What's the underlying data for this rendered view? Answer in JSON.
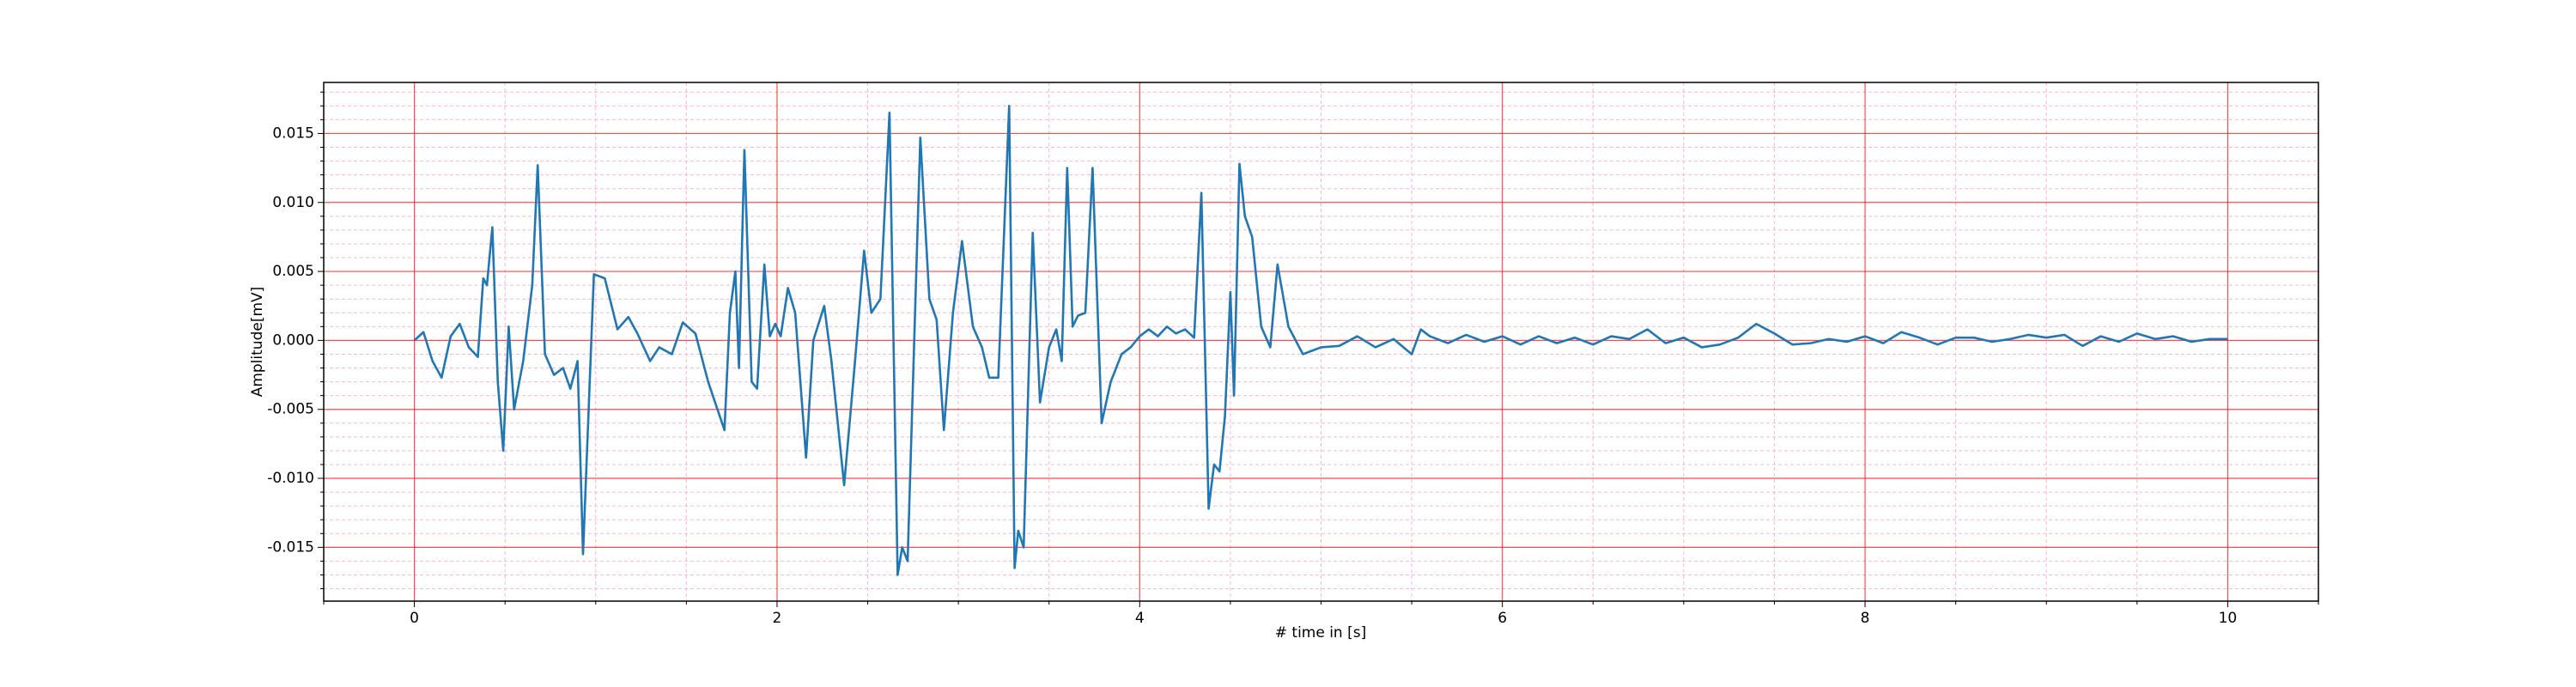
{
  "chart_data": {
    "type": "line",
    "xlabel": "# time in [s]",
    "ylabel": "Amplitude[mV]",
    "x": [
      0,
      0.05,
      0.1,
      0.15,
      0.2,
      0.25,
      0.3,
      0.35,
      0.38,
      0.4,
      0.43,
      0.46,
      0.49,
      0.52,
      0.55,
      0.6,
      0.65,
      0.68,
      0.72,
      0.77,
      0.82,
      0.86,
      0.9,
      0.93,
      0.99,
      1.05,
      1.12,
      1.18,
      1.23,
      1.3,
      1.35,
      1.42,
      1.48,
      1.55,
      1.62,
      1.71,
      1.74,
      1.77,
      1.79,
      1.82,
      1.86,
      1.89,
      1.93,
      1.96,
      1.99,
      2.02,
      2.06,
      2.1,
      2.16,
      2.2,
      2.26,
      2.3,
      2.37,
      2.43,
      2.48,
      2.52,
      2.57,
      2.62,
      2.665,
      2.69,
      2.72,
      2.79,
      2.84,
      2.88,
      2.92,
      2.97,
      3.02,
      3.08,
      3.13,
      3.17,
      3.22,
      3.28,
      3.31,
      3.33,
      3.36,
      3.41,
      3.45,
      3.5,
      3.54,
      3.57,
      3.6,
      3.63,
      3.66,
      3.7,
      3.74,
      3.79,
      3.84,
      3.9,
      3.95,
      4.0,
      4.05,
      4.1,
      4.15,
      4.2,
      4.25,
      4.3,
      4.34,
      4.38,
      4.41,
      4.44,
      4.47,
      4.5,
      4.52,
      4.55,
      4.58,
      4.62,
      4.67,
      4.72,
      4.76,
      4.82,
      4.9,
      5.0,
      5.1,
      5.2,
      5.3,
      5.4,
      5.5,
      5.55,
      5.6,
      5.7,
      5.8,
      5.9,
      6.0,
      6.1,
      6.2,
      6.3,
      6.4,
      6.5,
      6.6,
      6.7,
      6.8,
      6.9,
      7.0,
      7.1,
      7.2,
      7.3,
      7.4,
      7.5,
      7.6,
      7.7,
      7.8,
      7.9,
      8.0,
      8.1,
      8.2,
      8.3,
      8.4,
      8.5,
      8.6,
      8.7,
      8.8,
      8.9,
      9.0,
      9.1,
      9.2,
      9.3,
      9.4,
      9.5,
      9.6,
      9.7,
      9.8,
      9.9,
      10.0
    ],
    "series": [
      {
        "color": "#1f77b4",
        "values": [
          0,
          0.0006,
          -0.0015,
          -0.0027,
          0.0003,
          0.0012,
          -0.0005,
          -0.0012,
          0.0045,
          0.004,
          0.0082,
          -0.003,
          -0.008,
          0.001,
          -0.005,
          -0.0015,
          0.004,
          0.0127,
          -0.001,
          -0.0025,
          -0.002,
          -0.0035,
          -0.0015,
          -0.0155,
          0.0048,
          0.0045,
          0.0008,
          0.0017,
          0.0005,
          -0.0015,
          -0.0005,
          -0.001,
          0.0013,
          0.0005,
          -0.003,
          -0.0065,
          0.002,
          0.005,
          -0.002,
          0.0138,
          -0.003,
          -0.0035,
          0.0055,
          0.0003,
          0.0012,
          0.0003,
          0.0038,
          0.002,
          -0.0085,
          0,
          0.0025,
          -0.0015,
          -0.0105,
          -0.0015,
          0.0065,
          0.002,
          0.003,
          0.0165,
          -0.017,
          -0.015,
          -0.016,
          0.0147,
          0.003,
          0.0015,
          -0.0065,
          0.002,
          0.0072,
          0.001,
          -0.0005,
          -0.0027,
          -0.0027,
          0.017,
          -0.0165,
          -0.0138,
          -0.015,
          0.0078,
          -0.0045,
          -0.0005,
          0.0008,
          -0.0015,
          0.0125,
          0.001,
          0.0018,
          0.002,
          0.0125,
          -0.006,
          -0.003,
          -0.001,
          -0.0005,
          0.0003,
          0.0008,
          0.0003,
          0.001,
          0.0005,
          0.0008,
          0.0002,
          0.0107,
          -0.0122,
          -0.009,
          -0.0095,
          -0.0055,
          0.0035,
          -0.004,
          0.0128,
          0.009,
          0.0075,
          0.001,
          -0.0005,
          0.0055,
          0.001,
          -0.001,
          -0.0005,
          -0.0004,
          0.0003,
          -0.0005,
          0.0001,
          -0.001,
          0.0008,
          0.0003,
          -0.0002,
          0.0004,
          -0.0001,
          0.0003,
          -0.0003,
          0.0003,
          -0.0002,
          0.0002,
          -0.0003,
          0.0003,
          0.0001,
          0.0008,
          -0.0002,
          0.0002,
          -0.0005,
          -0.0003,
          0.0002,
          0.0012,
          0.0005,
          -0.0003,
          -0.0002,
          0.0001,
          -0.0001,
          0.0003,
          -0.0002,
          0.0006,
          0.0002,
          -0.0003,
          0.0002,
          0.0002,
          -0.0001,
          0.0001,
          0.0004,
          0.0002,
          0.0004,
          -0.0004,
          0.0003,
          -0.0001,
          0.0005,
          0.0001,
          0.0003,
          -0.0001,
          0.0001,
          0.0001
        ]
      }
    ],
    "xlim": [
      -0.5,
      10.5
    ],
    "ylim": [
      -0.0189,
      0.0187
    ],
    "xticks": [
      0,
      2,
      4,
      6,
      8,
      10
    ],
    "yticks": [
      -0.015,
      {
        "value": -0.01,
        "label": "-0.010"
      },
      -0.005,
      {
        "value": 0,
        "label": "0.000"
      },
      0.005,
      {
        "value": 0.01,
        "label": "0.010"
      },
      0.015
    ],
    "xminor": [
      -0.5,
      0.5,
      1,
      1.5,
      2.5,
      3,
      3.5,
      4.5,
      5,
      5.5,
      6.5,
      7,
      7.5,
      8.5,
      9,
      9.5,
      10.5
    ],
    "yminor": [
      -0.018,
      -0.017,
      -0.016,
      -0.014,
      -0.013,
      -0.012,
      -0.011,
      -0.009,
      -0.008,
      -0.007,
      -0.006,
      -0.004,
      -0.003,
      -0.002,
      -0.001,
      0.001,
      0.002,
      0.003,
      0.004,
      0.006,
      0.007,
      0.008,
      0.009,
      0.011,
      0.012,
      0.013,
      0.014,
      0.016,
      0.017,
      0.018
    ],
    "grid": true,
    "grid_color": "#ff0000",
    "minor_grid_color": "#ffb0d8"
  }
}
